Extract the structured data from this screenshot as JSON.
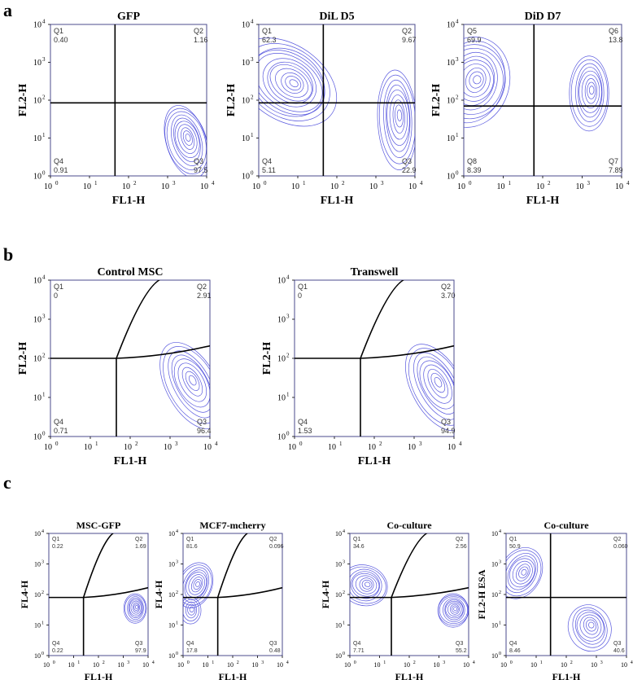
{
  "panels": [
    "a",
    "b",
    "c"
  ],
  "chart_data": [
    {
      "type": "scatter",
      "subtype": "flow-cytometry-contour",
      "panel": "a",
      "title": "GFP",
      "xlabel": "FL1-H",
      "ylabel": "FL2-H",
      "xscale": "log",
      "yscale": "log",
      "xlim": [
        1,
        10000
      ],
      "ylim": [
        1,
        10000
      ],
      "x_ticks": [
        "10",
        "10",
        "10",
        "10",
        "10"
      ],
      "x_tick_exponents": [
        "0",
        "1",
        "2",
        "3",
        "4"
      ],
      "y_ticks": [
        "10",
        "10",
        "10",
        "10",
        "10"
      ],
      "y_tick_exponents": [
        "0",
        "1",
        "2",
        "3",
        "4"
      ],
      "quadrants": [
        {
          "name": "Q1",
          "value": "0.40"
        },
        {
          "name": "Q2",
          "value": "1.16"
        },
        {
          "name": "Q3",
          "value": "97.5"
        },
        {
          "name": "Q4",
          "value": "0.91"
        }
      ],
      "gate": {
        "x": 45,
        "y": 85,
        "curved": false
      },
      "populations": [
        {
          "x": 3000,
          "y": 8,
          "sx": 0.25,
          "sy": 0.45,
          "rot": 0.3,
          "rings": 10
        }
      ]
    },
    {
      "type": "scatter",
      "subtype": "flow-cytometry-contour",
      "panel": "a",
      "title": "DiL D5",
      "xlabel": "FL1-H",
      "ylabel": "FL2-H",
      "xscale": "log",
      "yscale": "log",
      "xlim": [
        1,
        10000
      ],
      "ylim": [
        1,
        10000
      ],
      "x_ticks": [
        "10",
        "10",
        "10",
        "10",
        "10"
      ],
      "x_tick_exponents": [
        "0",
        "1",
        "2",
        "3",
        "4"
      ],
      "y_ticks": [
        "10",
        "10",
        "10",
        "10",
        "10"
      ],
      "y_tick_exponents": [
        "0",
        "1",
        "2",
        "3",
        "4"
      ],
      "quadrants": [
        {
          "name": "Q1",
          "value": "62.3"
        },
        {
          "name": "Q2",
          "value": "9.67"
        },
        {
          "name": "Q3",
          "value": "22.9"
        },
        {
          "name": "Q4",
          "value": "5.11"
        }
      ],
      "gate": {
        "x": 45,
        "y": 85,
        "curved": false
      },
      "populations": [
        {
          "x": 5,
          "y": 300,
          "sx": 0.6,
          "sy": 0.45,
          "rot": -0.6,
          "rings": 12
        },
        {
          "x": 3500,
          "y": 30,
          "sx": 0.22,
          "sy": 0.6,
          "rot": 0.05,
          "rings": 9
        }
      ]
    },
    {
      "type": "scatter",
      "subtype": "flow-cytometry-contour",
      "panel": "a",
      "title": "DiD D7",
      "xlabel": "FL1-H",
      "ylabel": "FL2-H",
      "xscale": "log",
      "yscale": "log",
      "xlim": [
        1,
        10000
      ],
      "ylim": [
        1,
        10000
      ],
      "x_ticks": [
        "10",
        "10",
        "10",
        "10",
        "10"
      ],
      "x_tick_exponents": [
        "0",
        "1",
        "2",
        "3",
        "4"
      ],
      "y_ticks": [
        "10",
        "10",
        "10",
        "10",
        "10"
      ],
      "y_tick_exponents": [
        "0",
        "1",
        "2",
        "3",
        "4"
      ],
      "quadrants": [
        {
          "name": "Q5",
          "value": "69.9"
        },
        {
          "name": "Q6",
          "value": "13.8"
        },
        {
          "name": "Q7",
          "value": "7.89"
        },
        {
          "name": "Q8",
          "value": "8.39"
        }
      ],
      "gate": {
        "x": 60,
        "y": 70,
        "curved": false
      },
      "populations": [
        {
          "x": 1.5,
          "y": 300,
          "sx": 0.45,
          "sy": 0.55,
          "rot": -0.3,
          "rings": 11
        },
        {
          "x": 1500,
          "y": 150,
          "sx": 0.22,
          "sy": 0.45,
          "rot": 0.0,
          "rings": 9
        }
      ]
    },
    {
      "type": "scatter",
      "subtype": "flow-cytometry-contour",
      "panel": "b",
      "title": "Control MSC",
      "xlabel": "FL1-H",
      "ylabel": "FL2-H",
      "xscale": "log",
      "yscale": "log",
      "xlim": [
        1,
        10000
      ],
      "ylim": [
        1,
        10000
      ],
      "x_ticks": [
        "10",
        "10",
        "10",
        "10",
        "10"
      ],
      "x_tick_exponents": [
        "0",
        "1",
        "2",
        "3",
        "4"
      ],
      "y_ticks": [
        "10",
        "10",
        "10",
        "10",
        "10"
      ],
      "y_tick_exponents": [
        "0",
        "1",
        "2",
        "3",
        "4"
      ],
      "quadrants": [
        {
          "name": "Q1",
          "value": "0"
        },
        {
          "name": "Q2",
          "value": "2.91"
        },
        {
          "name": "Q3",
          "value": "96.4"
        },
        {
          "name": "Q4",
          "value": "0.71"
        }
      ],
      "gate": {
        "x": 45,
        "y": 100,
        "curved": true
      },
      "populations": [
        {
          "x": 3500,
          "y": 20,
          "sx": 0.28,
          "sy": 0.55,
          "rot": 0.5,
          "rings": 9
        }
      ]
    },
    {
      "type": "scatter",
      "subtype": "flow-cytometry-contour",
      "panel": "b",
      "title": "Transwell",
      "xlabel": "FL1-H",
      "ylabel": "FL2-H",
      "xscale": "log",
      "yscale": "log",
      "xlim": [
        1,
        10000
      ],
      "ylim": [
        1,
        10000
      ],
      "x_ticks": [
        "10",
        "10",
        "10",
        "10",
        "10"
      ],
      "x_tick_exponents": [
        "0",
        "1",
        "2",
        "3",
        "4"
      ],
      "y_ticks": [
        "10",
        "10",
        "10",
        "10",
        "10"
      ],
      "y_tick_exponents": [
        "0",
        "1",
        "2",
        "3",
        "4"
      ],
      "quadrants": [
        {
          "name": "Q1",
          "value": "0"
        },
        {
          "name": "Q2",
          "value": "3.70"
        },
        {
          "name": "Q3",
          "value": "94.9"
        },
        {
          "name": "Q4",
          "value": "1.53"
        }
      ],
      "gate": {
        "x": 45,
        "y": 100,
        "curved": true
      },
      "populations": [
        {
          "x": 3800,
          "y": 18,
          "sx": 0.28,
          "sy": 0.55,
          "rot": 0.5,
          "rings": 9
        }
      ]
    },
    {
      "type": "scatter",
      "subtype": "flow-cytometry-contour",
      "panel": "c",
      "title": "MSC-GFP",
      "xlabel": "FL1-H",
      "ylabel": "FL4-H",
      "xscale": "log",
      "yscale": "log",
      "xlim": [
        1,
        10000
      ],
      "ylim": [
        1,
        10000
      ],
      "x_ticks": [
        "10",
        "10",
        "10",
        "10",
        "10"
      ],
      "x_tick_exponents": [
        "0",
        "1",
        "2",
        "3",
        "4"
      ],
      "y_ticks": [
        "10",
        "10",
        "10",
        "10",
        "10"
      ],
      "y_tick_exponents": [
        "0",
        "1",
        "2",
        "3",
        "4"
      ],
      "quadrants": [
        {
          "name": "Q1",
          "value": "0.22"
        },
        {
          "name": "Q2",
          "value": "1.69"
        },
        {
          "name": "Q3",
          "value": "97.9"
        },
        {
          "name": "Q4",
          "value": "0.22"
        }
      ],
      "gate": {
        "x": 25,
        "y": 80,
        "curved": true
      },
      "populations": [
        {
          "x": 3000,
          "y": 35,
          "sx": 0.2,
          "sy": 0.22,
          "rot": 0.0,
          "rings": 9
        }
      ]
    },
    {
      "type": "scatter",
      "subtype": "flow-cytometry-contour",
      "panel": "c",
      "title": "MCF7-mcherry",
      "xlabel": "FL1-H",
      "ylabel": "FL4-H",
      "xscale": "log",
      "yscale": "log",
      "xlim": [
        1,
        10000
      ],
      "ylim": [
        1,
        10000
      ],
      "x_ticks": [
        "10",
        "10",
        "10",
        "10",
        "10"
      ],
      "x_tick_exponents": [
        "0",
        "1",
        "2",
        "3",
        "4"
      ],
      "y_ticks": [
        "10",
        "10",
        "10",
        "10",
        "10"
      ],
      "y_tick_exponents": [
        "0",
        "1",
        "2",
        "3",
        "4"
      ],
      "quadrants": [
        {
          "name": "Q1",
          "value": "81.6"
        },
        {
          "name": "Q2",
          "value": "0.096"
        },
        {
          "name": "Q3",
          "value": "0.48"
        },
        {
          "name": "Q4",
          "value": "17.8"
        }
      ],
      "gate": {
        "x": 25,
        "y": 80,
        "curved": true
      },
      "populations": [
        {
          "x": 3,
          "y": 200,
          "sx": 0.3,
          "sy": 0.35,
          "rot": -0.4,
          "rings": 9
        },
        {
          "x": 2,
          "y": 30,
          "sx": 0.18,
          "sy": 0.2,
          "rot": 0,
          "rings": 5
        }
      ]
    },
    {
      "type": "scatter",
      "subtype": "flow-cytometry-contour",
      "panel": "c",
      "title": "Co-culture",
      "xlabel": "FL1-H",
      "ylabel": "FL4-H",
      "xscale": "log",
      "yscale": "log",
      "xlim": [
        1,
        10000
      ],
      "ylim": [
        1,
        10000
      ],
      "x_ticks": [
        "10",
        "10",
        "10",
        "10",
        "10"
      ],
      "x_tick_exponents": [
        "0",
        "1",
        "2",
        "3",
        "4"
      ],
      "y_ticks": [
        "10",
        "10",
        "10",
        "10",
        "10"
      ],
      "y_tick_exponents": [
        "0",
        "1",
        "2",
        "3",
        "4"
      ],
      "quadrants": [
        {
          "name": "Q1",
          "value": "34.6"
        },
        {
          "name": "Q2",
          "value": "2.56"
        },
        {
          "name": "Q3",
          "value": "55.2"
        },
        {
          "name": "Q4",
          "value": "7.71"
        }
      ],
      "gate": {
        "x": 25,
        "y": 80,
        "curved": true
      },
      "populations": [
        {
          "x": 3,
          "y": 200,
          "sx": 0.35,
          "sy": 0.3,
          "rot": -0.3,
          "rings": 9
        },
        {
          "x": 3000,
          "y": 30,
          "sx": 0.25,
          "sy": 0.25,
          "rot": 0,
          "rings": 10
        }
      ]
    },
    {
      "type": "scatter",
      "subtype": "flow-cytometry-contour",
      "panel": "c",
      "title": "Co-culture",
      "xlabel": "FL1-H",
      "ylabel": "FL2-H ESA",
      "xscale": "log",
      "yscale": "log",
      "xlim": [
        1,
        10000
      ],
      "ylim": [
        1,
        10000
      ],
      "x_ticks": [
        "10",
        "10",
        "10",
        "10",
        "10"
      ],
      "x_tick_exponents": [
        "0",
        "1",
        "2",
        "3",
        "4"
      ],
      "y_ticks": [
        "10",
        "10",
        "10",
        "10",
        "10"
      ],
      "y_tick_exponents": [
        "0",
        "1",
        "2",
        "3",
        "4"
      ],
      "quadrants": [
        {
          "name": "Q1",
          "value": "50.9"
        },
        {
          "name": "Q2",
          "value": "0.060"
        },
        {
          "name": "Q3",
          "value": "40.6"
        },
        {
          "name": "Q4",
          "value": "8.46"
        }
      ],
      "gate": {
        "x": 30,
        "y": 80,
        "curved": false
      },
      "populations": [
        {
          "x": 3,
          "y": 500,
          "sx": 0.3,
          "sy": 0.4,
          "rot": -0.5,
          "rings": 9
        },
        {
          "x": 600,
          "y": 8,
          "sx": 0.3,
          "sy": 0.35,
          "rot": 0.4,
          "rings": 8
        }
      ]
    }
  ]
}
